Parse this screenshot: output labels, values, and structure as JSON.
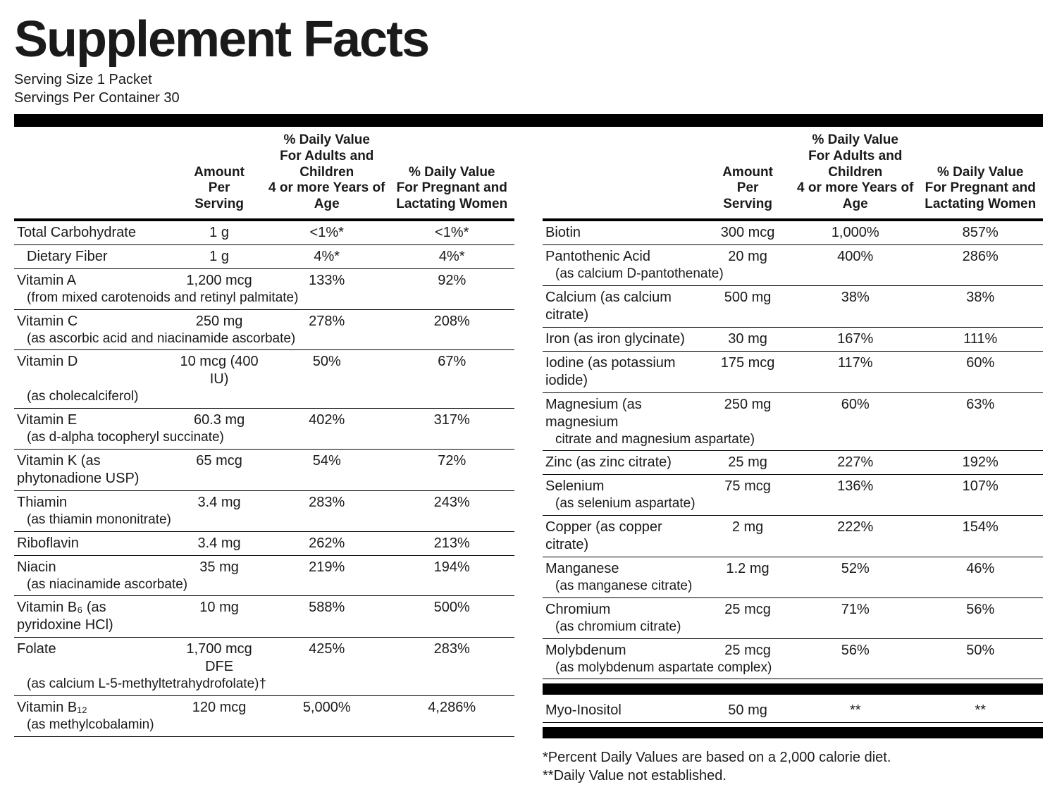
{
  "title": "Supplement   Facts",
  "serving": {
    "size": "Serving Size 1 Packet",
    "per_container": "Servings Per Container 30"
  },
  "headers": {
    "blank": "",
    "amount": "Amount\nPer\nServing",
    "dv_adults": "% Daily Value\nFor Adults and Children\n4 or more Years of Age",
    "dv_pregnant": "% Daily Value\nFor Pregnant and\nLactating Women"
  },
  "left": [
    {
      "name": "Total Carbohydrate",
      "amount": "1 g",
      "dv1": "<1%*",
      "dv2": "<1%*"
    },
    {
      "name": "Dietary Fiber",
      "amount": "1 g",
      "dv1": "4%*",
      "dv2": "4%*",
      "indent": true
    },
    {
      "name": "Vitamin A",
      "sub": "(from mixed carotenoids and retinyl palmitate)",
      "amount": "1,200 mcg",
      "dv1": "133%",
      "dv2": "92%"
    },
    {
      "name": "Vitamin C",
      "sub": "(as ascorbic acid and niacinamide ascorbate)",
      "amount": "250 mg",
      "dv1": "278%",
      "dv2": "208%"
    },
    {
      "name": "Vitamin D",
      "sub": "(as cholecalciferol)",
      "amount": "10 mcg (400 IU)",
      "dv1": "50%",
      "dv2": "67%"
    },
    {
      "name": "Vitamin E",
      "sub": "(as d-alpha tocopheryl succinate)",
      "amount": "60.3 mg",
      "dv1": "402%",
      "dv2": "317%"
    },
    {
      "name": "Vitamin K (as phytonadione USP)",
      "amount": "65 mcg",
      "dv1": "54%",
      "dv2": "72%"
    },
    {
      "name": "Thiamin",
      "sub": "(as thiamin mononitrate)",
      "amount": "3.4 mg",
      "dv1": "283%",
      "dv2": "243%"
    },
    {
      "name": "Riboflavin",
      "amount": "3.4 mg",
      "dv1": "262%",
      "dv2": "213%"
    },
    {
      "name": "Niacin",
      "sub": "(as niacinamide ascorbate)",
      "amount": "35 mg",
      "dv1": "219%",
      "dv2": "194%"
    },
    {
      "name": "Vitamin B₆ (as pyridoxine HCl)",
      "amount": "10 mg",
      "dv1": "588%",
      "dv2": "500%"
    },
    {
      "name": "Folate",
      "sub": "(as calcium L-5-methyltetrahydrofolate)†",
      "amount": "1,700 mcg DFE",
      "dv1": "425%",
      "dv2": "283%"
    },
    {
      "name": "Vitamin B₁₂",
      "sub": "(as methylcobalamin)",
      "amount": "120 mcg",
      "dv1": "5,000%",
      "dv2": "4,286%"
    }
  ],
  "right": [
    {
      "name": "Biotin",
      "amount": "300 mcg",
      "dv1": "1,000%",
      "dv2": "857%"
    },
    {
      "name": "Pantothenic Acid",
      "sub": "(as calcium D-pantothenate)",
      "amount": "20 mg",
      "dv1": "400%",
      "dv2": "286%"
    },
    {
      "name": "Calcium (as calcium citrate)",
      "amount": "500 mg",
      "dv1": "38%",
      "dv2": "38%"
    },
    {
      "name": "Iron (as iron glycinate)",
      "amount": "30 mg",
      "dv1": "167%",
      "dv2": "111%"
    },
    {
      "name": "Iodine (as potassium iodide)",
      "amount": "175 mcg",
      "dv1": "117%",
      "dv2": "60%"
    },
    {
      "name": "Magnesium (as magnesium",
      "sub": "citrate and magnesium aspartate)",
      "amount": "250 mg",
      "dv1": "60%",
      "dv2": "63%"
    },
    {
      "name": "Zinc (as zinc citrate)",
      "amount": "25 mg",
      "dv1": "227%",
      "dv2": "192%"
    },
    {
      "name": "Selenium",
      "sub": "(as selenium aspartate)",
      "amount": "75 mcg",
      "dv1": "136%",
      "dv2": "107%"
    },
    {
      "name": "Copper (as copper citrate)",
      "amount": "2 mg",
      "dv1": "222%",
      "dv2": "154%"
    },
    {
      "name": "Manganese",
      "sub": "(as manganese citrate)",
      "amount": "1.2 mg",
      "dv1": "52%",
      "dv2": "46%"
    },
    {
      "name": "Chromium",
      "sub": "(as chromium citrate)",
      "amount": "25 mcg",
      "dv1": "71%",
      "dv2": "56%"
    },
    {
      "name": "Molybdenum",
      "sub": "(as molybdenum aspartate complex)",
      "amount": "25 mcg",
      "dv1": "56%",
      "dv2": "50%"
    }
  ],
  "right_extra": [
    {
      "name": "Myo-Inositol",
      "amount": "50 mg",
      "dv1": "**",
      "dv2": "**"
    }
  ],
  "footnotes": {
    "l1": "*Percent Daily Values are based on a 2,000 calorie diet.",
    "l2": "**Daily Value not established."
  }
}
